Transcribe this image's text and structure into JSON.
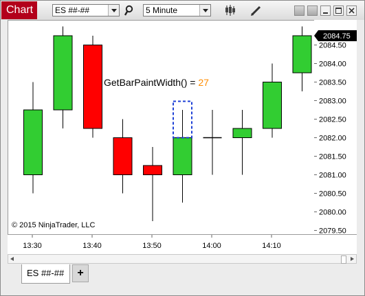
{
  "window": {
    "title": "Chart",
    "instrument": "ES ##-##",
    "interval": "5 Minute"
  },
  "chart_data": {
    "type": "candlestick",
    "annotation": {
      "label": "GetBarPaintWidth() = ",
      "value": "27"
    },
    "copyright": "© 2015 NinjaTrader, LLC",
    "last_price": "2084.75",
    "y_ticks": [
      "2084.50",
      "2084.00",
      "2083.50",
      "2083.00",
      "2082.50",
      "2082.00",
      "2081.50",
      "2081.00",
      "2080.50",
      "2080.00",
      "2079.50"
    ],
    "y_values": [
      2084.5,
      2084.0,
      2083.5,
      2083.0,
      2082.5,
      2082.0,
      2081.5,
      2081.0,
      2080.5,
      2080.0,
      2079.5
    ],
    "x_ticks": [
      "13:30",
      "13:40",
      "13:50",
      "14:00",
      "14:10"
    ],
    "ylim": [
      2079.25,
      2085.0
    ],
    "bars": [
      {
        "open": 2081.0,
        "high": 2083.5,
        "low": 2080.5,
        "close": 2082.75
      },
      {
        "open": 2082.75,
        "high": 2085.0,
        "low": 2082.25,
        "close": 2084.75
      },
      {
        "open": 2084.5,
        "high": 2084.75,
        "low": 2082.0,
        "close": 2082.25
      },
      {
        "open": 2082.0,
        "high": 2082.5,
        "low": 2080.5,
        "close": 2081.0
      },
      {
        "open": 2081.25,
        "high": 2081.75,
        "low": 2079.75,
        "close": 2081.0
      },
      {
        "open": 2081.0,
        "high": 2082.75,
        "low": 2080.25,
        "close": 2082.0
      },
      {
        "open": 2082.0,
        "high": 2082.75,
        "low": 2081.0,
        "close": 2082.0
      },
      {
        "open": 2082.0,
        "high": 2082.75,
        "low": 2081.0,
        "close": 2082.25
      },
      {
        "open": 2082.25,
        "high": 2084.0,
        "low": 2082.0,
        "close": 2083.5
      },
      {
        "open": 2083.75,
        "high": 2085.0,
        "low": 2083.25,
        "close": 2084.75
      }
    ],
    "colors": {
      "up": "#32cd32",
      "down": "#ff0000",
      "highlight": "#1c3fd6",
      "annotation_value": "#ff8c00",
      "last_price_bg": "#000000"
    }
  },
  "tabs": [
    {
      "label": "ES ##-##"
    }
  ],
  "add_tab_label": "+"
}
